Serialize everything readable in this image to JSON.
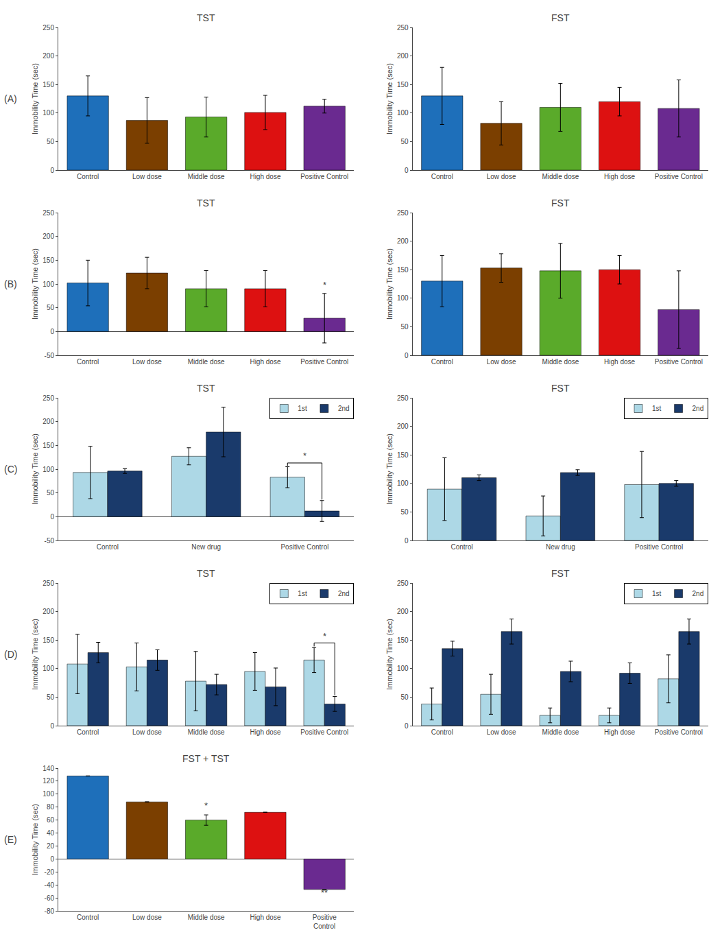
{
  "chart_data": [
    {
      "type": "bar",
      "title": "TST",
      "panel_label": "(A)",
      "y_label": "Immobility Time (sec)",
      "categories": [
        "Control",
        "Low dose",
        "Middle dose",
        "High dose",
        "Positive Control"
      ],
      "values": [
        130,
        87,
        93,
        101,
        112
      ],
      "errors": [
        35,
        40,
        35,
        30,
        12
      ],
      "colors": [
        "#1e6fba",
        "#7B3F00",
        "#5aaa2a",
        "#dd1111",
        "#6a2a90"
      ],
      "ylim": [
        0,
        250
      ],
      "yticks": [
        0,
        50,
        100,
        150,
        200,
        250
      ],
      "grid": false
    },
    {
      "type": "bar",
      "title": "FST",
      "y_label": "Immobility Time (sec)",
      "categories": [
        "Control",
        "Low dose",
        "Middle dose",
        "High dose",
        "Positive Control"
      ],
      "values": [
        130,
        82,
        110,
        120,
        108
      ],
      "errors": [
        50,
        38,
        42,
        25,
        50
      ],
      "colors": [
        "#1e6fba",
        "#7B3F00",
        "#5aaa2a",
        "#dd1111",
        "#6a2a90"
      ],
      "ylim": [
        0,
        250
      ],
      "yticks": [
        0,
        50,
        100,
        150,
        200,
        250
      ],
      "grid": false
    },
    {
      "type": "bar",
      "title": "TST",
      "panel_label": "(B)",
      "y_label": "Immobility Time (sec)",
      "categories": [
        "Control",
        "Low dose",
        "Middle dose",
        "High dose",
        "Positive Control"
      ],
      "values": [
        102,
        123,
        90,
        90,
        28
      ],
      "errors": [
        48,
        33,
        38,
        38,
        52
      ],
      "colors": [
        "#1e6fba",
        "#7B3F00",
        "#5aaa2a",
        "#dd1111",
        "#6a2a90"
      ],
      "annotations": [
        {
          "x": "Positive Control",
          "y": 84,
          "text": "*"
        }
      ],
      "ylim": [
        -50,
        250
      ],
      "yticks": [
        -50,
        0,
        50,
        100,
        150,
        200,
        250
      ],
      "grid": false
    },
    {
      "type": "bar",
      "title": "FST",
      "y_label": "Immobility Time (sec)",
      "categories": [
        "Control",
        "Low dose",
        "Middle dose",
        "High dose",
        "Positive Control"
      ],
      "values": [
        130,
        153,
        148,
        150,
        80
      ],
      "errors": [
        45,
        25,
        48,
        25,
        68
      ],
      "colors": [
        "#1e6fba",
        "#7B3F00",
        "#5aaa2a",
        "#dd1111",
        "#6a2a90"
      ],
      "ylim": [
        0,
        250
      ],
      "yticks": [
        0,
        50,
        100,
        150,
        200,
        250
      ],
      "grid": false
    },
    {
      "type": "bar",
      "title": "TST",
      "panel_label": "(C)",
      "y_label": "Immobility Time (sec)",
      "categories": [
        "Control",
        "New drug",
        "Positive Control"
      ],
      "series": [
        {
          "name": "1st",
          "color": "#add8e6",
          "values": [
            93,
            127,
            83
          ],
          "errors": [
            55,
            18,
            22
          ]
        },
        {
          "name": "2nd",
          "color": "#1a3a6b",
          "values": [
            96,
            178,
            12
          ],
          "errors": [
            5,
            52,
            22
          ]
        }
      ],
      "bracket": {
        "x": "Positive Control",
        "y": 113,
        "y_left": 107,
        "y_right": 36
      },
      "annotations": [
        {
          "x": "Positive Control",
          "y": 114,
          "text": "*"
        }
      ],
      "legend": "upper right",
      "ylim": [
        -50,
        250
      ],
      "yticks": [
        -50,
        0,
        50,
        100,
        150,
        200,
        250
      ],
      "grid": false
    },
    {
      "type": "bar",
      "title": "FST",
      "y_label": "Immobility Time (sec)",
      "categories": [
        "Control",
        "New drug",
        "Positive Control"
      ],
      "series": [
        {
          "name": "1st",
          "color": "#add8e6",
          "values": [
            90,
            43,
            98
          ],
          "errors": [
            55,
            35,
            58
          ]
        },
        {
          "name": "2nd",
          "color": "#1a3a6b",
          "values": [
            110,
            119,
            100
          ],
          "errors": [
            5,
            5,
            5
          ]
        }
      ],
      "legend": "upper right",
      "ylim": [
        0,
        250
      ],
      "yticks": [
        0,
        50,
        100,
        150,
        200,
        250
      ],
      "grid": false
    },
    {
      "type": "bar",
      "title": "TST",
      "panel_label": "(D)",
      "y_label": "Immobility Time (sec)",
      "categories": [
        "Control",
        "Low dose",
        "Middle dose",
        "High dose",
        "Positive Control"
      ],
      "series": [
        {
          "name": "1st",
          "color": "#add8e6",
          "values": [
            108,
            103,
            78,
            95,
            115
          ],
          "errors": [
            52,
            42,
            52,
            33,
            22
          ]
        },
        {
          "name": "2nd",
          "color": "#1a3a6b",
          "values": [
            128,
            115,
            72,
            68,
            38
          ],
          "errors": [
            18,
            18,
            18,
            33,
            13
          ]
        }
      ],
      "bracket": {
        "x": "Positive Control",
        "y": 145,
        "y_left": 139,
        "y_right": 53
      },
      "annotations": [
        {
          "x": "Positive Control",
          "y": 146,
          "text": "*"
        }
      ],
      "legend": "upper right",
      "ylim": [
        0,
        250
      ],
      "yticks": [
        0,
        50,
        100,
        150,
        200,
        250
      ],
      "grid": false
    },
    {
      "type": "bar",
      "title": "FST",
      "y_label": "Immobility Time (sec)",
      "categories": [
        "Control",
        "Low dose",
        "Middle dose",
        "High dose",
        "Positive Control"
      ],
      "series": [
        {
          "name": "1st",
          "color": "#add8e6",
          "values": [
            38,
            55,
            18,
            18,
            82
          ],
          "errors": [
            28,
            35,
            13,
            13,
            42
          ]
        },
        {
          "name": "2nd",
          "color": "#1a3a6b",
          "values": [
            135,
            165,
            95,
            92,
            165
          ],
          "errors": [
            13,
            22,
            18,
            18,
            22
          ]
        }
      ],
      "legend": "upper right",
      "ylim": [
        0,
        250
      ],
      "yticks": [
        0,
        50,
        100,
        150,
        200,
        250
      ],
      "grid": false
    },
    {
      "type": "bar",
      "title": "FST + TST",
      "panel_label": "(E)",
      "y_label": "Immobility Time (sec)",
      "categories": [
        "Control",
        "Low dose",
        "Middle dose",
        "High dose",
        "Positive\nControl"
      ],
      "values": [
        128,
        88,
        60,
        72,
        -47
      ],
      "errors": [
        0,
        0,
        8,
        0,
        0
      ],
      "colors": [
        "#1e6fba",
        "#7B3F00",
        "#5aaa2a",
        "#dd1111",
        "#6a2a90"
      ],
      "annotations": [
        {
          "x": "Middle dose",
          "y": 72,
          "text": "*"
        },
        {
          "x": "Positive\nControl",
          "y": -62,
          "text": "**"
        }
      ],
      "ylim": [
        -80,
        140
      ],
      "yticks": [
        -80,
        -60,
        -40,
        -20,
        0,
        20,
        40,
        60,
        80,
        100,
        120,
        140
      ],
      "grid": false
    }
  ]
}
